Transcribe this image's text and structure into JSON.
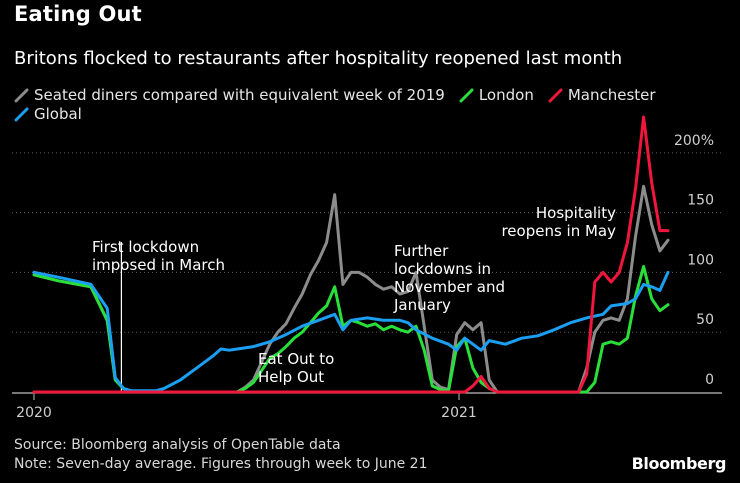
{
  "title": "Eating Out",
  "subtitle": "Britons flocked to restaurants after hospitality reopened last month",
  "footer": {
    "source": "Source: Bloomberg analysis of OpenTable data",
    "note": "Note: Seven-day average. Figures through week to June 21"
  },
  "brand": "Bloomberg",
  "chart_data": {
    "type": "line",
    "title": "Eating Out",
    "subtitle": "Britons flocked to restaurants after hospitality reopened last month",
    "ylabel": "",
    "xlabel": "",
    "ylim": [
      0,
      230
    ],
    "xlim": [
      "2020-01-01",
      "2021-06-30"
    ],
    "grid": true,
    "legend_position": "top-left",
    "y_ticks": [
      {
        "value": 0,
        "label": "0"
      },
      {
        "value": 50,
        "label": "50"
      },
      {
        "value": 100,
        "label": "100"
      },
      {
        "value": 150,
        "label": "150"
      },
      {
        "value": 200,
        "label": "200%"
      }
    ],
    "x_ticks": [
      {
        "value": "2020-01-01",
        "label": "2020"
      },
      {
        "value": "2021-01-01",
        "label": "2021"
      }
    ],
    "series": [
      {
        "name": "Seated diners compared with equivalent week of 2019",
        "color": "#8c8c8c",
        "points": [
          [
            "2020-01-01",
            98
          ],
          [
            "2020-01-22",
            93
          ],
          [
            "2020-02-19",
            88
          ],
          [
            "2020-03-04",
            60
          ],
          [
            "2020-03-11",
            10
          ],
          [
            "2020-03-18",
            3
          ],
          [
            "2020-03-25",
            0
          ],
          [
            "2020-04-22",
            0
          ],
          [
            "2020-05-20",
            0
          ],
          [
            "2020-06-24",
            0
          ],
          [
            "2020-07-01",
            4
          ],
          [
            "2020-07-08",
            10
          ],
          [
            "2020-07-15",
            25
          ],
          [
            "2020-07-22",
            40
          ],
          [
            "2020-07-29",
            50
          ],
          [
            "2020-08-05",
            57
          ],
          [
            "2020-08-12",
            70
          ],
          [
            "2020-08-19",
            82
          ],
          [
            "2020-08-26",
            98
          ],
          [
            "2020-09-02",
            110
          ],
          [
            "2020-09-09",
            125
          ],
          [
            "2020-09-16",
            165
          ],
          [
            "2020-09-23",
            90
          ],
          [
            "2020-09-30",
            100
          ],
          [
            "2020-10-07",
            100
          ],
          [
            "2020-10-14",
            96
          ],
          [
            "2020-10-21",
            90
          ],
          [
            "2020-10-28",
            86
          ],
          [
            "2020-11-04",
            88
          ],
          [
            "2020-11-11",
            82
          ],
          [
            "2020-11-18",
            84
          ],
          [
            "2020-11-25",
            100
          ],
          [
            "2020-12-02",
            55
          ],
          [
            "2020-12-09",
            10
          ],
          [
            "2020-12-16",
            4
          ],
          [
            "2020-12-23",
            2
          ],
          [
            "2020-12-30",
            48
          ],
          [
            "2021-01-06",
            58
          ],
          [
            "2021-01-13",
            52
          ],
          [
            "2021-01-20",
            58
          ],
          [
            "2021-01-27",
            10
          ],
          [
            "2021-02-03",
            0
          ],
          [
            "2021-03-03",
            0
          ],
          [
            "2021-04-14",
            0
          ],
          [
            "2021-04-21",
            20
          ],
          [
            "2021-04-28",
            50
          ],
          [
            "2021-05-05",
            60
          ],
          [
            "2021-05-12",
            62
          ],
          [
            "2021-05-19",
            60
          ],
          [
            "2021-05-26",
            78
          ],
          [
            "2021-06-02",
            130
          ],
          [
            "2021-06-09",
            172
          ],
          [
            "2021-06-16",
            140
          ],
          [
            "2021-06-23",
            118
          ],
          [
            "2021-06-30",
            127
          ]
        ]
      },
      {
        "name": "London",
        "color": "#29e03a",
        "points": [
          [
            "2020-01-01",
            98
          ],
          [
            "2020-01-22",
            93
          ],
          [
            "2020-02-19",
            88
          ],
          [
            "2020-03-04",
            60
          ],
          [
            "2020-03-11",
            10
          ],
          [
            "2020-03-18",
            3
          ],
          [
            "2020-03-25",
            0
          ],
          [
            "2020-06-24",
            0
          ],
          [
            "2020-07-01",
            3
          ],
          [
            "2020-07-08",
            8
          ],
          [
            "2020-07-15",
            18
          ],
          [
            "2020-07-22",
            28
          ],
          [
            "2020-07-29",
            32
          ],
          [
            "2020-08-05",
            38
          ],
          [
            "2020-08-12",
            45
          ],
          [
            "2020-08-19",
            50
          ],
          [
            "2020-08-26",
            58
          ],
          [
            "2020-09-02",
            66
          ],
          [
            "2020-09-09",
            72
          ],
          [
            "2020-09-16",
            88
          ],
          [
            "2020-09-23",
            55
          ],
          [
            "2020-09-30",
            60
          ],
          [
            "2020-10-07",
            58
          ],
          [
            "2020-10-14",
            55
          ],
          [
            "2020-10-21",
            57
          ],
          [
            "2020-10-28",
            52
          ],
          [
            "2020-11-04",
            55
          ],
          [
            "2020-11-11",
            52
          ],
          [
            "2020-11-18",
            50
          ],
          [
            "2020-11-25",
            55
          ],
          [
            "2020-12-02",
            35
          ],
          [
            "2020-12-09",
            5
          ],
          [
            "2020-12-16",
            2
          ],
          [
            "2020-12-23",
            1
          ],
          [
            "2020-12-30",
            38
          ],
          [
            "2021-01-06",
            45
          ],
          [
            "2021-01-13",
            20
          ],
          [
            "2021-01-20",
            8
          ],
          [
            "2021-01-27",
            3
          ],
          [
            "2021-02-03",
            0
          ],
          [
            "2021-04-21",
            0
          ],
          [
            "2021-04-28",
            8
          ],
          [
            "2021-05-05",
            40
          ],
          [
            "2021-05-12",
            42
          ],
          [
            "2021-05-19",
            40
          ],
          [
            "2021-05-26",
            45
          ],
          [
            "2021-06-02",
            80
          ],
          [
            "2021-06-09",
            105
          ],
          [
            "2021-06-16",
            78
          ],
          [
            "2021-06-23",
            68
          ],
          [
            "2021-06-30",
            73
          ]
        ]
      },
      {
        "name": "Manchester",
        "color": "#f0163c",
        "points": [
          [
            "2020-01-01",
            0
          ],
          [
            "2020-12-30",
            0
          ],
          [
            "2021-01-06",
            0
          ],
          [
            "2021-01-13",
            5
          ],
          [
            "2021-01-20",
            13
          ],
          [
            "2021-01-27",
            3
          ],
          [
            "2021-02-03",
            0
          ],
          [
            "2021-04-14",
            0
          ],
          [
            "2021-04-21",
            15
          ],
          [
            "2021-04-28",
            92
          ],
          [
            "2021-05-05",
            100
          ],
          [
            "2021-05-12",
            92
          ],
          [
            "2021-05-19",
            100
          ],
          [
            "2021-05-26",
            125
          ],
          [
            "2021-06-02",
            170
          ],
          [
            "2021-06-09",
            230
          ],
          [
            "2021-06-16",
            175
          ],
          [
            "2021-06-23",
            135
          ],
          [
            "2021-06-30",
            135
          ]
        ]
      },
      {
        "name": "Global",
        "color": "#1a9ff3",
        "points": [
          [
            "2020-01-01",
            100
          ],
          [
            "2020-01-22",
            96
          ],
          [
            "2020-02-19",
            90
          ],
          [
            "2020-03-04",
            70
          ],
          [
            "2020-03-11",
            12
          ],
          [
            "2020-03-18",
            3
          ],
          [
            "2020-03-25",
            1
          ],
          [
            "2020-04-15",
            1
          ],
          [
            "2020-04-22",
            3
          ],
          [
            "2020-05-06",
            10
          ],
          [
            "2020-05-20",
            20
          ],
          [
            "2020-06-03",
            30
          ],
          [
            "2020-06-10",
            36
          ],
          [
            "2020-06-17",
            35
          ],
          [
            "2020-06-24",
            36
          ],
          [
            "2020-07-08",
            38
          ],
          [
            "2020-07-22",
            42
          ],
          [
            "2020-08-05",
            48
          ],
          [
            "2020-08-19",
            55
          ],
          [
            "2020-09-02",
            60
          ],
          [
            "2020-09-16",
            65
          ],
          [
            "2020-09-23",
            52
          ],
          [
            "2020-09-30",
            60
          ],
          [
            "2020-10-14",
            62
          ],
          [
            "2020-10-28",
            60
          ],
          [
            "2020-11-11",
            60
          ],
          [
            "2020-11-18",
            58
          ],
          [
            "2020-11-25",
            52
          ],
          [
            "2020-12-09",
            45
          ],
          [
            "2020-12-23",
            40
          ],
          [
            "2020-12-30",
            35
          ],
          [
            "2021-01-06",
            45
          ],
          [
            "2021-01-13",
            40
          ],
          [
            "2021-01-20",
            35
          ],
          [
            "2021-01-27",
            43
          ],
          [
            "2021-02-10",
            40
          ],
          [
            "2021-02-24",
            45
          ],
          [
            "2021-03-10",
            47
          ],
          [
            "2021-03-24",
            52
          ],
          [
            "2021-04-07",
            58
          ],
          [
            "2021-04-21",
            62
          ],
          [
            "2021-05-05",
            65
          ],
          [
            "2021-05-12",
            72
          ],
          [
            "2021-05-26",
            74
          ],
          [
            "2021-06-02",
            78
          ],
          [
            "2021-06-09",
            90
          ],
          [
            "2021-06-16",
            88
          ],
          [
            "2021-06-23",
            85
          ],
          [
            "2021-06-30",
            100
          ]
        ]
      }
    ],
    "annotations": [
      {
        "lines": [
          "First lockdown",
          "imposed in March"
        ],
        "date": "2020-03-18",
        "value": 0,
        "leader_line": true
      },
      {
        "lines": [
          "Eat Out to",
          "Help Out"
        ],
        "date": "2020-08-19",
        "value": 10
      },
      {
        "lines": [
          "Further",
          "lockdowns in",
          "November and",
          "January"
        ],
        "date": "2020-11-25",
        "value": 70
      },
      {
        "lines": [
          "Hospitality",
          "reopens in May"
        ],
        "date": "2021-05-19",
        "value": 150
      }
    ]
  }
}
